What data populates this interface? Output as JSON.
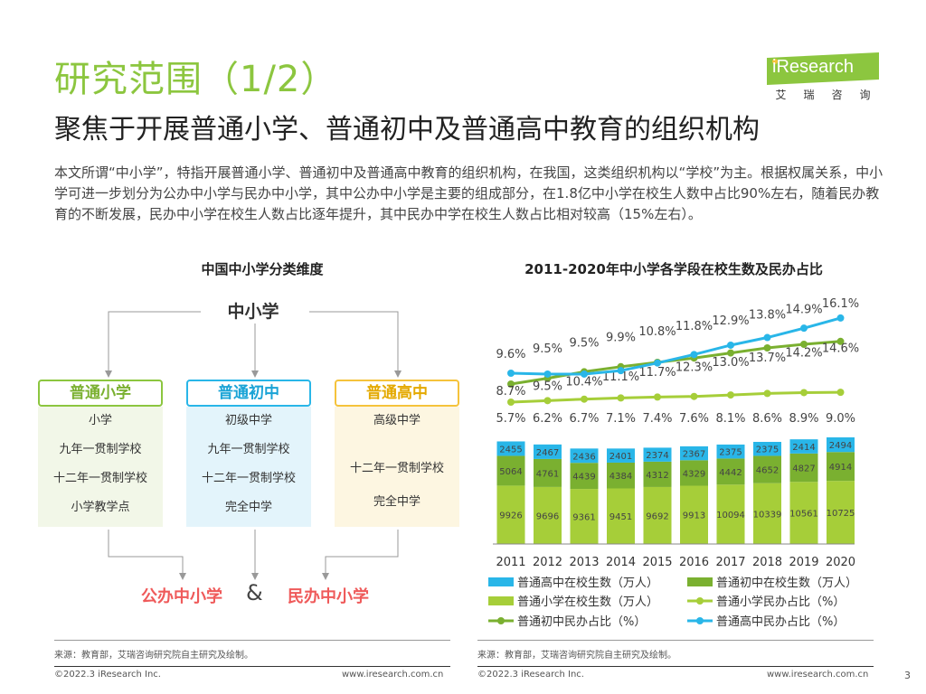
{
  "header": {
    "title": "研究范围（1/2）",
    "subtitle": "聚焦于开展普通小学、普通初中及普通高中教育的组织机构",
    "intro": "本文所谓“中小学”，特指开展普通小学、普通初中及普通高中教育的组织机构，在我国，这类组织机构以“学校”为主。根据权属关系，中小学可进一步划分为公办中小学与民办中小学，其中公办中小学是主要的组成部分，在1.8亿中小学在校生人数中占比90%左右，随着民办教育的不断发展，民办中小学在校生人数占比逐年提升，其中民办中学在校生人数占比相对较高（15%左右）。"
  },
  "logo": {
    "word": "iResearch",
    "cn": [
      "艾",
      "瑞",
      "咨",
      "询"
    ]
  },
  "diagram": {
    "title": "中国中小学分类维度",
    "root": "中小学",
    "categories": [
      {
        "name": "普通小学",
        "items": [
          "小学",
          "九年一贯制学校",
          "十二年一贯制学校",
          "小学教学点"
        ]
      },
      {
        "name": "普通初中",
        "items": [
          "初级中学",
          "九年一贯制学校",
          "十二年一贯制学校",
          "完全中学"
        ]
      },
      {
        "name": "普通高中",
        "items": [
          "高级中学",
          "十二年一贯制学校",
          "完全中学"
        ]
      }
    ],
    "ownership": {
      "public": "公办中小学",
      "amp": "&",
      "private": "民办中小学"
    }
  },
  "chart_data": {
    "type": "bar",
    "title": "2011-2020年中小学各学段在校生数及民办占比",
    "categories": [
      "2011",
      "2012",
      "2013",
      "2014",
      "2015",
      "2016",
      "2017",
      "2018",
      "2019",
      "2020"
    ],
    "series": [
      {
        "name": "普通小学在校生数（万人）",
        "kind": "bar",
        "color": "#a6ce39",
        "values": [
          9926,
          9696,
          9361,
          9451,
          9692,
          9913,
          10094,
          10339,
          10561,
          10725
        ]
      },
      {
        "name": "普通初中在校生数（万人）",
        "kind": "bar",
        "color": "#7ab030",
        "values": [
          5064,
          4761,
          4439,
          4384,
          4312,
          4329,
          4442,
          4652,
          4827,
          4914
        ]
      },
      {
        "name": "普通高中在校生数（万人）",
        "kind": "bar",
        "color": "#29b6e8",
        "values": [
          2455,
          2467,
          2436,
          2401,
          2374,
          2367,
          2375,
          2375,
          2414,
          2494
        ]
      },
      {
        "name": "普通小学民办占比（%）",
        "kind": "line",
        "color": "#a6ce39",
        "values": [
          5.7,
          6.2,
          6.7,
          7.1,
          7.4,
          7.6,
          8.1,
          8.6,
          8.9,
          9.0
        ]
      },
      {
        "name": "普通初中民办占比（%）",
        "kind": "line",
        "color": "#7ab030",
        "values": [
          8.7,
          9.5,
          10.4,
          11.1,
          11.7,
          12.3,
          13.0,
          13.7,
          14.2,
          14.6
        ]
      },
      {
        "name": "普通高中民办占比（%）",
        "kind": "line",
        "color": "#29b6e8",
        "values": [
          9.6,
          9.5,
          9.5,
          9.9,
          10.8,
          11.8,
          12.9,
          13.8,
          14.9,
          16.1
        ]
      }
    ],
    "value_labels": {
      "小学": [
        "5.7%",
        "6.2%",
        "6.7%",
        "7.1%",
        "7.4%",
        "7.6%",
        "8.1%",
        "8.6%",
        "8.9%",
        "9.0%"
      ],
      "初中": [
        "8.7%",
        "9.5%",
        "10.4%",
        "11.1%",
        "11.7%",
        "12.3%",
        "13.0%",
        "13.7%",
        "14.2%",
        "14.6%"
      ],
      "高中": [
        "9.6%",
        "9.5%",
        "9.5%",
        "9.9%",
        "10.8%",
        "11.8%",
        "12.9%",
        "13.8%",
        "14.9%",
        "16.1%"
      ]
    },
    "legend": [
      "普通高中在校生数（万人）",
      "普通初中在校生数（万人）",
      "普通小学在校生数（万人）",
      "普通小学民办占比（%）",
      "普通初中民办占比（%）",
      "普通高中民办占比（%）"
    ]
  },
  "sources": {
    "left": "来源：教育部，艾瑞咨询研究院自主研究及绘制。",
    "right": "来源：教育部，艾瑞咨询研究院自主研究及绘制。"
  },
  "footer": {
    "copyright": "©2022.3 iResearch Inc.",
    "url": "www.iresearch.com.cn",
    "page": "3"
  }
}
